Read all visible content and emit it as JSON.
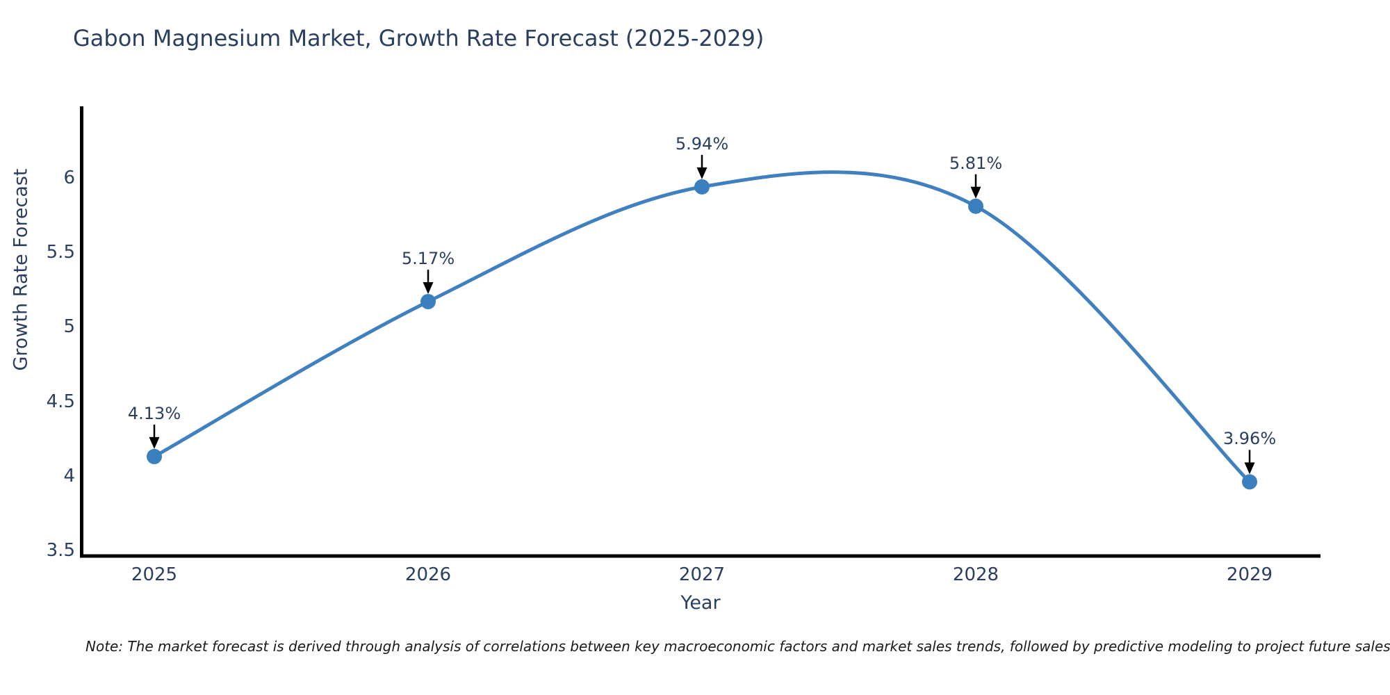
{
  "header": {
    "title": "Gabon Magnesium Market, Growth Rate Forecast (2025-2029)"
  },
  "footer": {
    "note": "Note: The market forecast is derived through analysis of correlations between key macroeconomic factors and market sales trends, followed by predictive modeling to project future sales"
  },
  "chart_data": {
    "type": "line",
    "line_shape": "spline",
    "title": "Gabon Magnesium Market, Growth Rate Forecast (2025-2029)",
    "xlabel": "Year",
    "ylabel": "Growth Rate Forecast",
    "categories": [
      "2025",
      "2026",
      "2027",
      "2028",
      "2029"
    ],
    "values": [
      4.13,
      5.17,
      5.94,
      5.81,
      3.96
    ],
    "point_labels": [
      "4.13%",
      "5.17%",
      "5.94%",
      "5.81%",
      "3.96%"
    ],
    "ytick_values": [
      3.5,
      4,
      4.5,
      5,
      5.5,
      6
    ],
    "ytick_labels": [
      "3.5",
      "4",
      "4.5",
      "5",
      "5.5",
      "6"
    ],
    "ylim": [
      3.46,
      6.49
    ],
    "grid": false,
    "legend": false,
    "colors": {
      "line": "#4080bf",
      "marker": "#3a80bf",
      "axis": "#000000",
      "text": "#2a3f5f",
      "annotation_arrow": "#000000",
      "note_text": "#1a1a1a"
    }
  }
}
